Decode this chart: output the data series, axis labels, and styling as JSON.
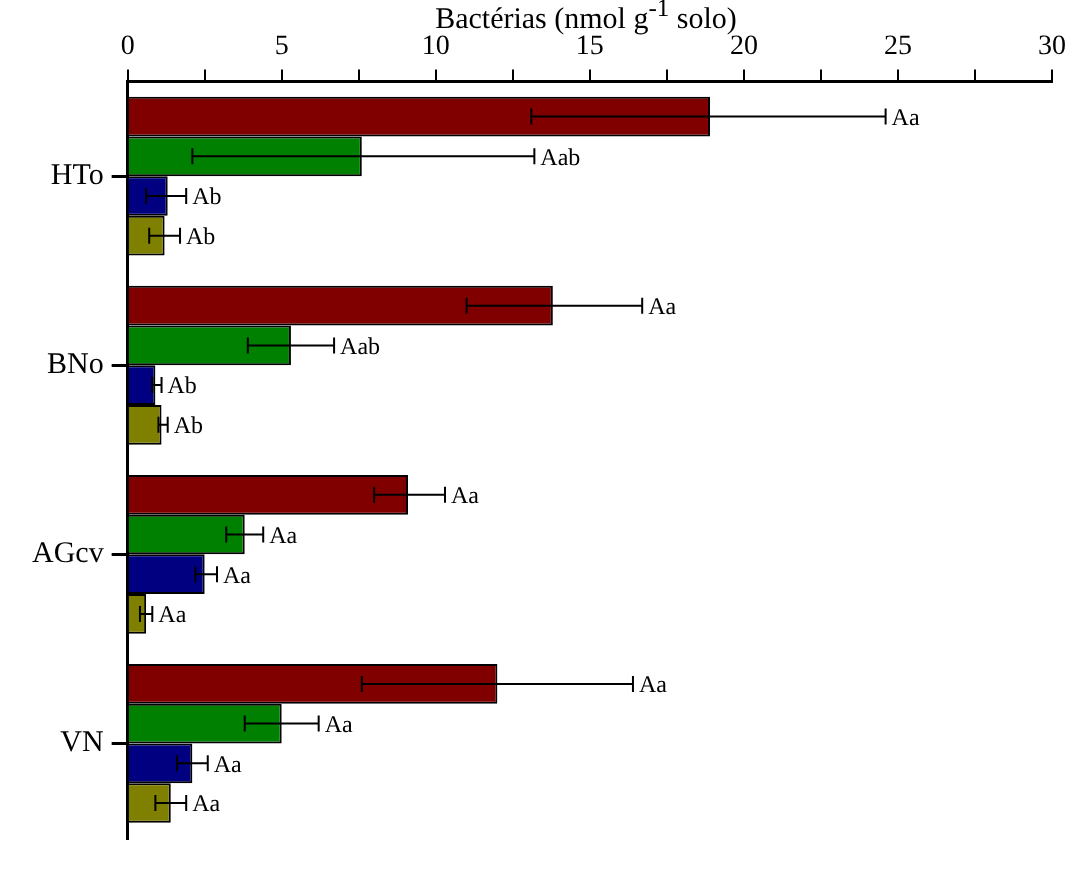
{
  "chart_data": {
    "type": "bar",
    "orientation": "horizontal",
    "xlabel": "Bactérias (nmol g$^{-1}$ solo)",
    "categories": [
      "HTo",
      "BNo",
      "AGcv",
      "VN"
    ],
    "xlim": [
      0,
      30
    ],
    "xticks": [
      0,
      {
        "value": 2.5,
        "label": null
      },
      5,
      {
        "value": 7.5,
        "label": null
      },
      10,
      {
        "value": 12.5,
        "label": null
      },
      15,
      {
        "value": 17.5,
        "label": null
      },
      20,
      {
        "value": 22.5,
        "label": null
      },
      25,
      {
        "value": 27.5,
        "label": null
      },
      30
    ],
    "grid": false,
    "legend": false,
    "series": [
      {
        "color": "#800000",
        "values": [
          18.9,
          13.8,
          9.1,
          12.0
        ],
        "errors": [
          [
            13.1,
            24.6
          ],
          [
            11.0,
            16.7
          ],
          [
            8.0,
            10.3
          ],
          [
            7.6,
            16.4
          ]
        ]
      },
      {
        "color": "#008000",
        "values": [
          7.6,
          5.3,
          3.8,
          5.0
        ],
        "errors": [
          [
            2.1,
            13.2
          ],
          [
            3.9,
            6.7
          ],
          [
            3.2,
            4.4
          ],
          [
            3.8,
            6.2
          ]
        ]
      },
      {
        "color": "#000080",
        "values": [
          1.3,
          0.9,
          2.5,
          2.1
        ],
        "errors": [
          [
            0.6,
            1.9
          ],
          [
            0.8,
            1.1
          ],
          [
            2.2,
            2.9
          ],
          [
            1.6,
            2.6
          ]
        ]
      },
      {
        "color": "#808000",
        "values": [
          1.2,
          1.1,
          0.6,
          1.4
        ],
        "errors": [
          [
            0.7,
            1.7
          ],
          [
            1.0,
            1.3
          ],
          [
            0.4,
            0.8
          ],
          [
            0.9,
            1.9
          ]
        ]
      }
    ],
    "annotations": [
      "Aa",
      "Aab",
      "Ab",
      "Ab",
      "Aa",
      "Aab",
      "Ab",
      "Ab",
      "Aa",
      "Aa",
      "Aa",
      "Aa",
      "Aa",
      "Aa",
      "Aa",
      "Aa"
    ]
  }
}
